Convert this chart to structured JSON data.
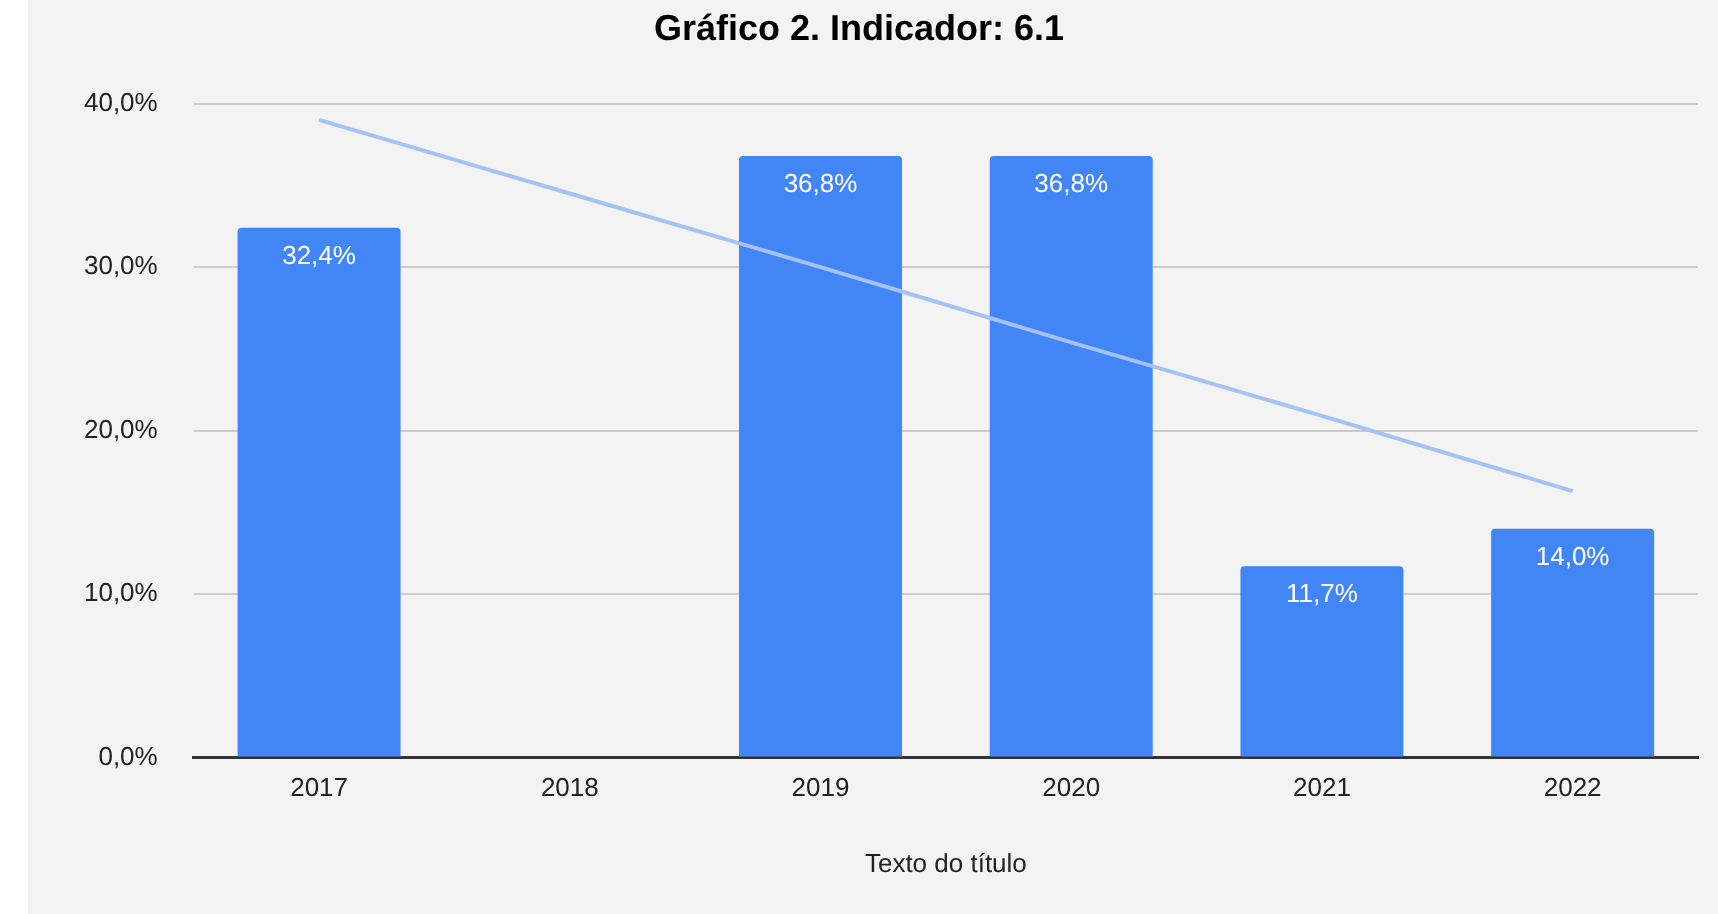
{
  "chart_data": {
    "type": "bar",
    "title": "Gráfico 2. Indicador: 6.1",
    "xlabel": "Texto do título",
    "categories": [
      "2017",
      "2018",
      "2019",
      "2020",
      "2021",
      "2022"
    ],
    "series": [
      {
        "color": "#4285f4",
        "values": [
          32.4,
          null,
          36.8,
          36.8,
          11.7,
          14.0
        ],
        "value_labels": [
          "32,4%",
          null,
          "36,8%",
          "36,8%",
          "11,7%",
          "14,0%"
        ]
      },
      {
        "type": "line",
        "color": "#a4c2f4",
        "values": [
          39.0,
          34.5,
          30.0,
          25.4,
          20.9,
          16.3
        ]
      }
    ],
    "ylim": [
      0,
      40
    ],
    "yticks": [
      {
        "value": 0,
        "label": "0,0%"
      },
      {
        "value": 10,
        "label": "10,0%"
      },
      {
        "value": 20,
        "label": "20,0%"
      },
      {
        "value": 30,
        "label": "30,0%"
      },
      {
        "value": 40,
        "label": "40,0%"
      }
    ],
    "grid": "y",
    "legend": false,
    "marker": "none",
    "line_style": "solid"
  }
}
